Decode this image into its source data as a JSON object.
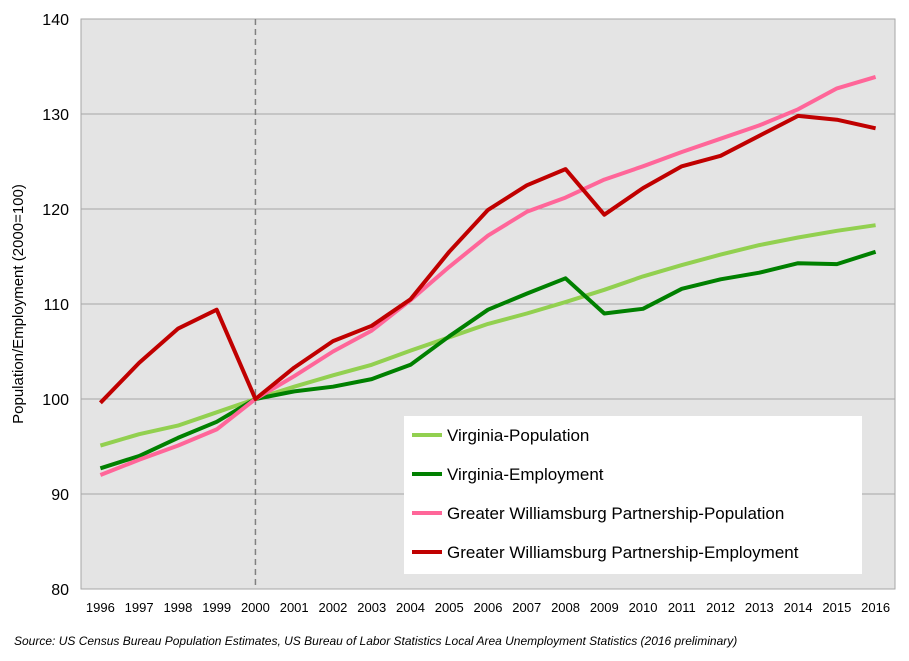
{
  "chart_data": {
    "type": "line",
    "title": "",
    "xlabel": "",
    "ylabel": "Population/Employment (2000=100)",
    "ylim": [
      80,
      140
    ],
    "yticks": [
      80,
      90,
      100,
      110,
      120,
      130,
      140
    ],
    "grid": true,
    "legend_position": "lower-right",
    "reference_line_x": "2000",
    "categories": [
      "1996",
      "1997",
      "1998",
      "1999",
      "2000",
      "2001",
      "2002",
      "2003",
      "2004",
      "2005",
      "2006",
      "2007",
      "2008",
      "2009",
      "2010",
      "2011",
      "2012",
      "2013",
      "2014",
      "2015",
      "2016"
    ],
    "series": [
      {
        "name": "Virginia-Population",
        "color": "#92d050",
        "values": [
          95.1,
          96.3,
          97.2,
          98.6,
          100.0,
          101.3,
          102.5,
          103.6,
          105.1,
          106.5,
          107.9,
          109.0,
          110.2,
          111.5,
          112.9,
          114.1,
          115.2,
          116.2,
          117.0,
          117.7,
          118.3
        ]
      },
      {
        "name": "Virginia-Employment",
        "color": "#008000",
        "values": [
          92.7,
          94.0,
          95.9,
          97.6,
          100.0,
          100.8,
          101.3,
          102.1,
          103.6,
          106.6,
          109.4,
          111.1,
          112.7,
          109.0,
          109.5,
          111.6,
          112.6,
          113.3,
          114.3,
          114.2,
          115.5
        ]
      },
      {
        "name": "Greater Williamsburg Partnership-Population",
        "color": "#ff6699",
        "values": [
          92.0,
          93.6,
          95.1,
          96.8,
          100.0,
          102.4,
          105.0,
          107.2,
          110.4,
          113.9,
          117.2,
          119.7,
          121.2,
          123.1,
          124.5,
          126.0,
          127.4,
          128.8,
          130.5,
          132.7,
          133.9
        ]
      },
      {
        "name": "Greater Williamsburg Partnership-Employment",
        "color": "#c00000",
        "values": [
          99.6,
          103.8,
          107.4,
          109.4,
          100.0,
          103.3,
          106.1,
          107.7,
          110.5,
          115.5,
          119.9,
          122.5,
          124.2,
          119.4,
          122.2,
          124.5,
          125.6,
          127.7,
          129.8,
          129.4,
          128.5
        ]
      }
    ]
  },
  "source_note": "Source: US Census Bureau Population Estimates, US Bureau of Labor Statistics Local Area Unemployment Statistics (2016 preliminary)"
}
